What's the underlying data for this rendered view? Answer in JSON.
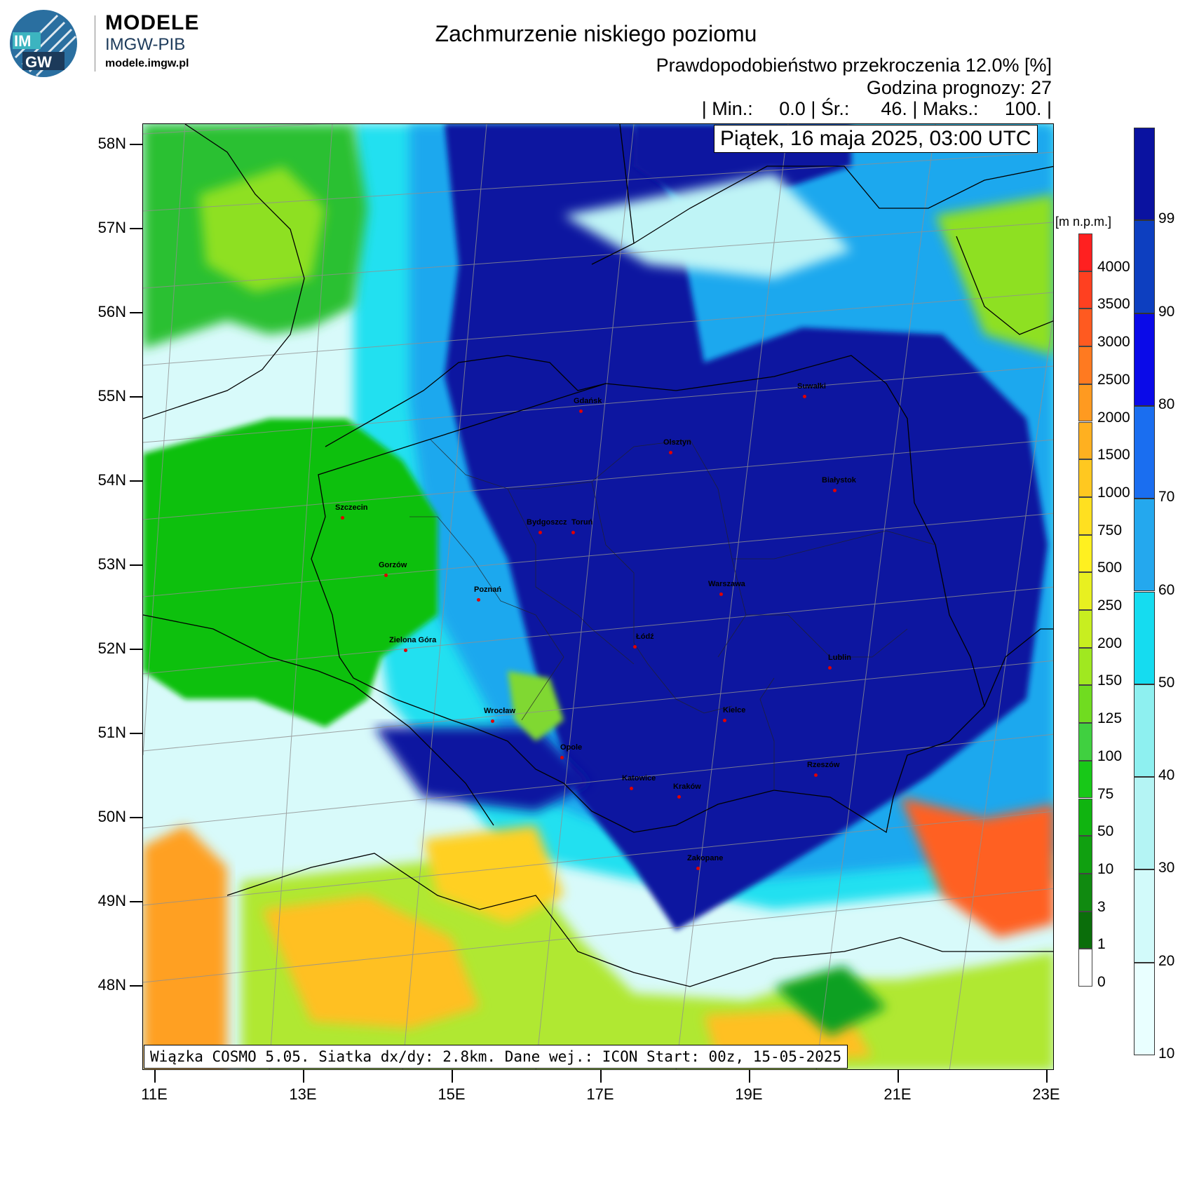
{
  "header": {
    "brand_title": "MODELE",
    "brand_sub": "IMGW-PIB",
    "brand_url": "modele.imgw.pl",
    "logo_text": "IMGW",
    "title": "Zachmurzenie niskiego poziomu",
    "subtitle": "Prawdopodobieństwo przekroczenia 12.0% [%]",
    "forecast_hour": "Godzina prognozy: 27",
    "stats": "| Min.:     0.0 | Śr.:      46. | Maks.:     100. |",
    "date": "Piątek, 16 maja 2025, 03:00 UTC"
  },
  "footer": {
    "info": "Wiązka COSMO 5.05. Siatka dx/dy: 2.8km. Dane wej.: ICON Start: 00z, 15-05-2025"
  },
  "axes": {
    "lat_labels": [
      "58N",
      "57N",
      "56N",
      "55N",
      "54N",
      "53N",
      "52N",
      "51N",
      "50N",
      "49N",
      "48N"
    ],
    "lon_labels": [
      "11E",
      "13E",
      "15E",
      "17E",
      "19E",
      "21E",
      "23E"
    ]
  },
  "legend_cloud": {
    "labels": [
      "99",
      "90",
      "80",
      "70",
      "60",
      "50",
      "40",
      "30",
      "20",
      "10"
    ],
    "colors": [
      "#0a12a0",
      "#0d3fc0",
      "#0a0ae8",
      "#1a6ef0",
      "#24a8ee",
      "#15dcf0",
      "#8ef0f0",
      "#b4f4f4",
      "#d2fafa",
      "#e9ffff"
    ]
  },
  "legend_altitude": {
    "unit": "[m n.p.m.]",
    "labels": [
      "4000",
      "3500",
      "3000",
      "2500",
      "2000",
      "1500",
      "1000",
      "750",
      "500",
      "250",
      "200",
      "150",
      "125",
      "100",
      "75",
      "50",
      "10",
      "3",
      "1",
      "0"
    ],
    "colors": [
      "#ff2020",
      "#ff4020",
      "#ff5a20",
      "#ff7a20",
      "#ff9a20",
      "#ffb020",
      "#ffc820",
      "#ffe020",
      "#fff020",
      "#e8f020",
      "#c8ee20",
      "#a0e820",
      "#70dc20",
      "#40d040",
      "#18c818",
      "#10b410",
      "#10a010",
      "#108a10",
      "#0a6e0a",
      "#ffffff"
    ]
  },
  "cities": [
    {
      "name": "Gdańsk"
    },
    {
      "name": "Olsztyn"
    },
    {
      "name": "Suwałki"
    },
    {
      "name": "Białystok"
    },
    {
      "name": "Szczecin"
    },
    {
      "name": "Bydgoszcz"
    },
    {
      "name": "Toruń"
    },
    {
      "name": "Gorzów"
    },
    {
      "name": "Poznań"
    },
    {
      "name": "Warszawa"
    },
    {
      "name": "Zielona Góra"
    },
    {
      "name": "Łódź"
    },
    {
      "name": "Lublin"
    },
    {
      "name": "Wrocław"
    },
    {
      "name": "Kielce"
    },
    {
      "name": "Opole"
    },
    {
      "name": "Rzeszów"
    },
    {
      "name": "Katowice"
    },
    {
      "name": "Kraków"
    },
    {
      "name": "Zakopane"
    }
  ]
}
